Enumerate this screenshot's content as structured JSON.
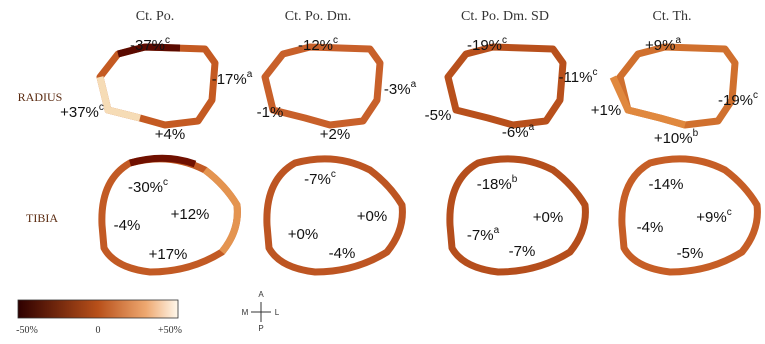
{
  "columns": [
    "Ct. Po.",
    "Ct. Po. Dm.",
    "Ct. Po. Dm. SD",
    "Ct. Th."
  ],
  "rows": [
    "RADIUS",
    "TIBIA"
  ],
  "panels": [
    {
      "radius": [
        {
          "text": "-37%",
          "sup": "c"
        },
        {
          "text": "-17%",
          "sup": "a"
        },
        {
          "text": "+37%",
          "sup": "c"
        },
        {
          "text": "+4%"
        }
      ],
      "tibia": [
        {
          "text": "-30%",
          "sup": "c"
        },
        {
          "text": "-4%"
        },
        {
          "text": "+12%"
        },
        {
          "text": "+17%"
        }
      ]
    },
    {
      "radius": [
        {
          "text": "-12%",
          "sup": "c"
        },
        {
          "text": "-3%",
          "sup": "a"
        },
        {
          "text": "-1%"
        },
        {
          "text": "+2%"
        }
      ],
      "tibia": [
        {
          "text": "-7%",
          "sup": "c"
        },
        {
          "text": "+0%"
        },
        {
          "text": "+0%"
        },
        {
          "text": "-4%"
        }
      ]
    },
    {
      "radius": [
        {
          "text": "-19%",
          "sup": "c"
        },
        {
          "text": "-11%",
          "sup": "c"
        },
        {
          "text": "-5%"
        },
        {
          "text": "-6%",
          "sup": "a"
        }
      ],
      "tibia": [
        {
          "text": "-18%",
          "sup": "b"
        },
        {
          "text": "+0%"
        },
        {
          "text": "-7%",
          "sup": "a"
        },
        {
          "text": "-7%"
        }
      ]
    },
    {
      "radius": [
        {
          "text": "+9%",
          "sup": "a"
        },
        {
          "text": "-19%",
          "sup": "c"
        },
        {
          "text": "+1%"
        },
        {
          "text": "+10%",
          "sup": "b"
        }
      ],
      "tibia": [
        {
          "text": "-14%"
        },
        {
          "text": "+9%",
          "sup": "c"
        },
        {
          "text": "-4%"
        },
        {
          "text": "-5%"
        }
      ]
    }
  ],
  "legend": {
    "min": "-50%",
    "mid": "0",
    "max": "+50%"
  },
  "compass": {
    "up": "A",
    "down": "P",
    "left": "M",
    "right": "L"
  }
}
